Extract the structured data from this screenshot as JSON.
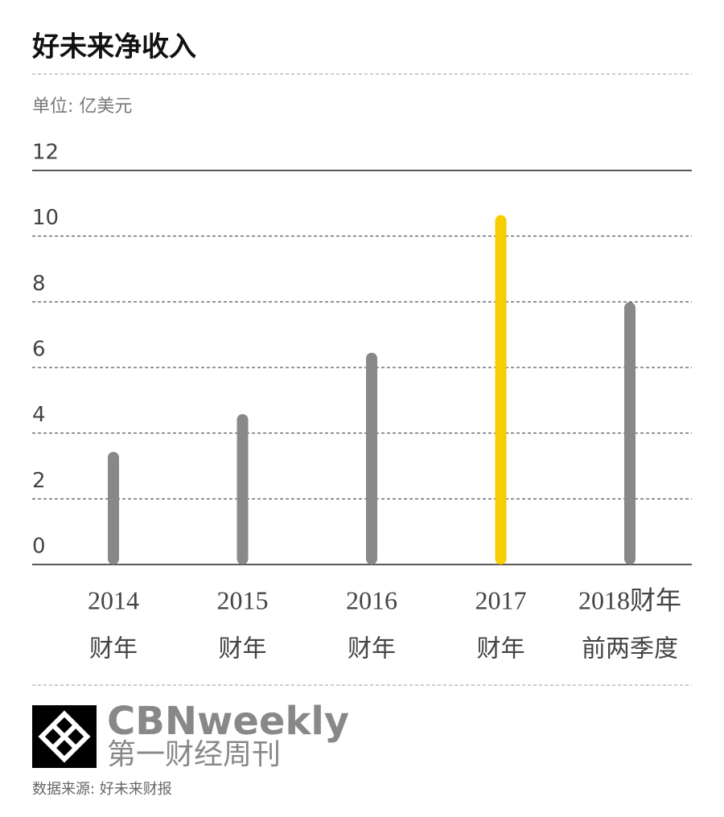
{
  "chart_data": {
    "type": "bar",
    "title": "好未来净收入",
    "subtitle": "单位: 亿美元",
    "categories": [
      [
        "2014",
        "财年"
      ],
      [
        "2015",
        "财年"
      ],
      [
        "2016",
        "财年"
      ],
      [
        "2017",
        "财年"
      ],
      [
        "2018财年",
        "前两季度"
      ]
    ],
    "values": [
      3.43,
      4.58,
      6.45,
      10.64,
      7.99
    ],
    "colors": [
      "#888888",
      "#888888",
      "#888888",
      "#f7ce00",
      "#888888"
    ],
    "ylim": [
      0,
      12
    ],
    "yticks": [
      0,
      2,
      4,
      6,
      8,
      10,
      12
    ],
    "grid": true,
    "source": "数据来源: 好未来财报"
  },
  "logo": {
    "name": "CBNweekly",
    "subname": "第一财经周刊"
  }
}
